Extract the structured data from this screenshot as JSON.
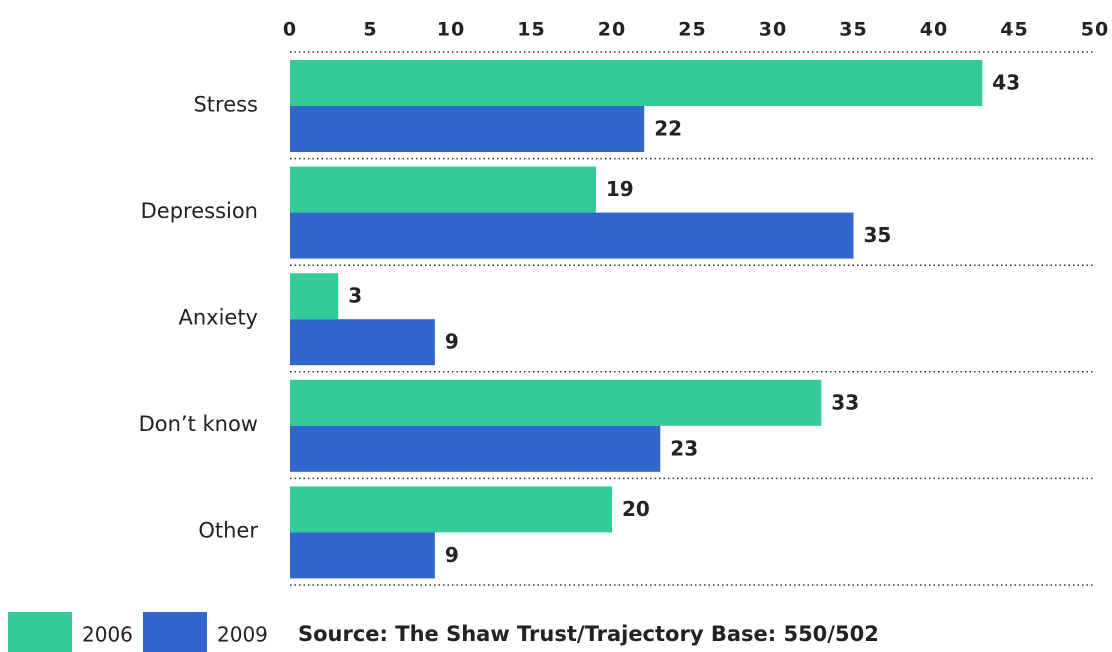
{
  "chart_data": {
    "type": "bar",
    "orientation": "horizontal",
    "categories": [
      "Stress",
      "Depression",
      "Anxiety",
      "Don’t know",
      "Other"
    ],
    "series": [
      {
        "name": "2006",
        "color": "#33cc99",
        "values": [
          43,
          19,
          3,
          33,
          20
        ]
      },
      {
        "name": "2009",
        "color": "#3366cc",
        "values": [
          22,
          35,
          9,
          23,
          9
        ]
      }
    ],
    "xlim": [
      0,
      50
    ],
    "xticks": [
      0,
      5,
      10,
      15,
      20,
      25,
      30,
      35,
      40,
      45,
      50
    ],
    "legend": "bottom-left",
    "source": "Source: The Shaw Trust/Trajectory Base: 550/502"
  }
}
